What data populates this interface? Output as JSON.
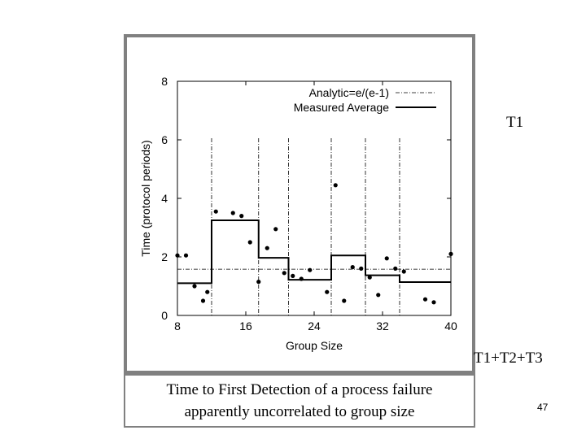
{
  "chart_data": {
    "type": "scatter",
    "title": "",
    "xlabel": "Group Size",
    "ylabel": "Time (protocol periods)",
    "xlim": [
      8,
      40
    ],
    "ylim": [
      0,
      8
    ],
    "x_ticks": [
      8,
      16,
      24,
      32,
      40
    ],
    "y_ticks": [
      0,
      2,
      4,
      6,
      8
    ],
    "legend": {
      "placement": "top-right",
      "entries": [
        "Analytic=e/(e-1)",
        "Measured Average"
      ]
    },
    "analytic_value": 1.58,
    "step_breaks": [
      12,
      17.5,
      21,
      26,
      30,
      34
    ],
    "measured_average_steps": [
      {
        "x0": 8,
        "x1": 12,
        "y": 1.1
      },
      {
        "x0": 12,
        "x1": 17.5,
        "y": 3.25
      },
      {
        "x0": 17.5,
        "x1": 21,
        "y": 1.97
      },
      {
        "x0": 21,
        "x1": 26,
        "y": 1.22
      },
      {
        "x0": 26,
        "x1": 30,
        "y": 2.05
      },
      {
        "x0": 30,
        "x1": 34,
        "y": 1.37
      },
      {
        "x0": 34,
        "x1": 40,
        "y": 1.14
      }
    ],
    "points": [
      {
        "x": 8,
        "y": 2.05
      },
      {
        "x": 9,
        "y": 2.05
      },
      {
        "x": 10,
        "y": 1.0
      },
      {
        "x": 11,
        "y": 0.5
      },
      {
        "x": 11.5,
        "y": 0.8
      },
      {
        "x": 12.5,
        "y": 3.55
      },
      {
        "x": 14.5,
        "y": 3.5
      },
      {
        "x": 15.5,
        "y": 3.4
      },
      {
        "x": 16.5,
        "y": 2.5
      },
      {
        "x": 17.5,
        "y": 1.15
      },
      {
        "x": 18.5,
        "y": 2.3
      },
      {
        "x": 19.5,
        "y": 2.95
      },
      {
        "x": 20.5,
        "y": 1.45
      },
      {
        "x": 21.5,
        "y": 1.35
      },
      {
        "x": 22.5,
        "y": 1.25
      },
      {
        "x": 23.5,
        "y": 1.55
      },
      {
        "x": 25.5,
        "y": 0.8
      },
      {
        "x": 26.5,
        "y": 4.45
      },
      {
        "x": 27.5,
        "y": 0.5
      },
      {
        "x": 28.5,
        "y": 1.65
      },
      {
        "x": 29.5,
        "y": 1.6
      },
      {
        "x": 30.5,
        "y": 1.3
      },
      {
        "x": 31.5,
        "y": 0.7
      },
      {
        "x": 32.5,
        "y": 1.95
      },
      {
        "x": 33.5,
        "y": 1.6
      },
      {
        "x": 34.5,
        "y": 1.5
      },
      {
        "x": 37,
        "y": 0.55
      },
      {
        "x": 38,
        "y": 0.45
      },
      {
        "x": 40,
        "y": 2.1
      }
    ]
  },
  "side_labels": {
    "t1": "T1",
    "t123": "T1+T2+T3"
  },
  "caption": {
    "line1": "Time to First Detection of a process failure",
    "line2": "apparently uncorrelated to group size"
  },
  "page_number": "47"
}
